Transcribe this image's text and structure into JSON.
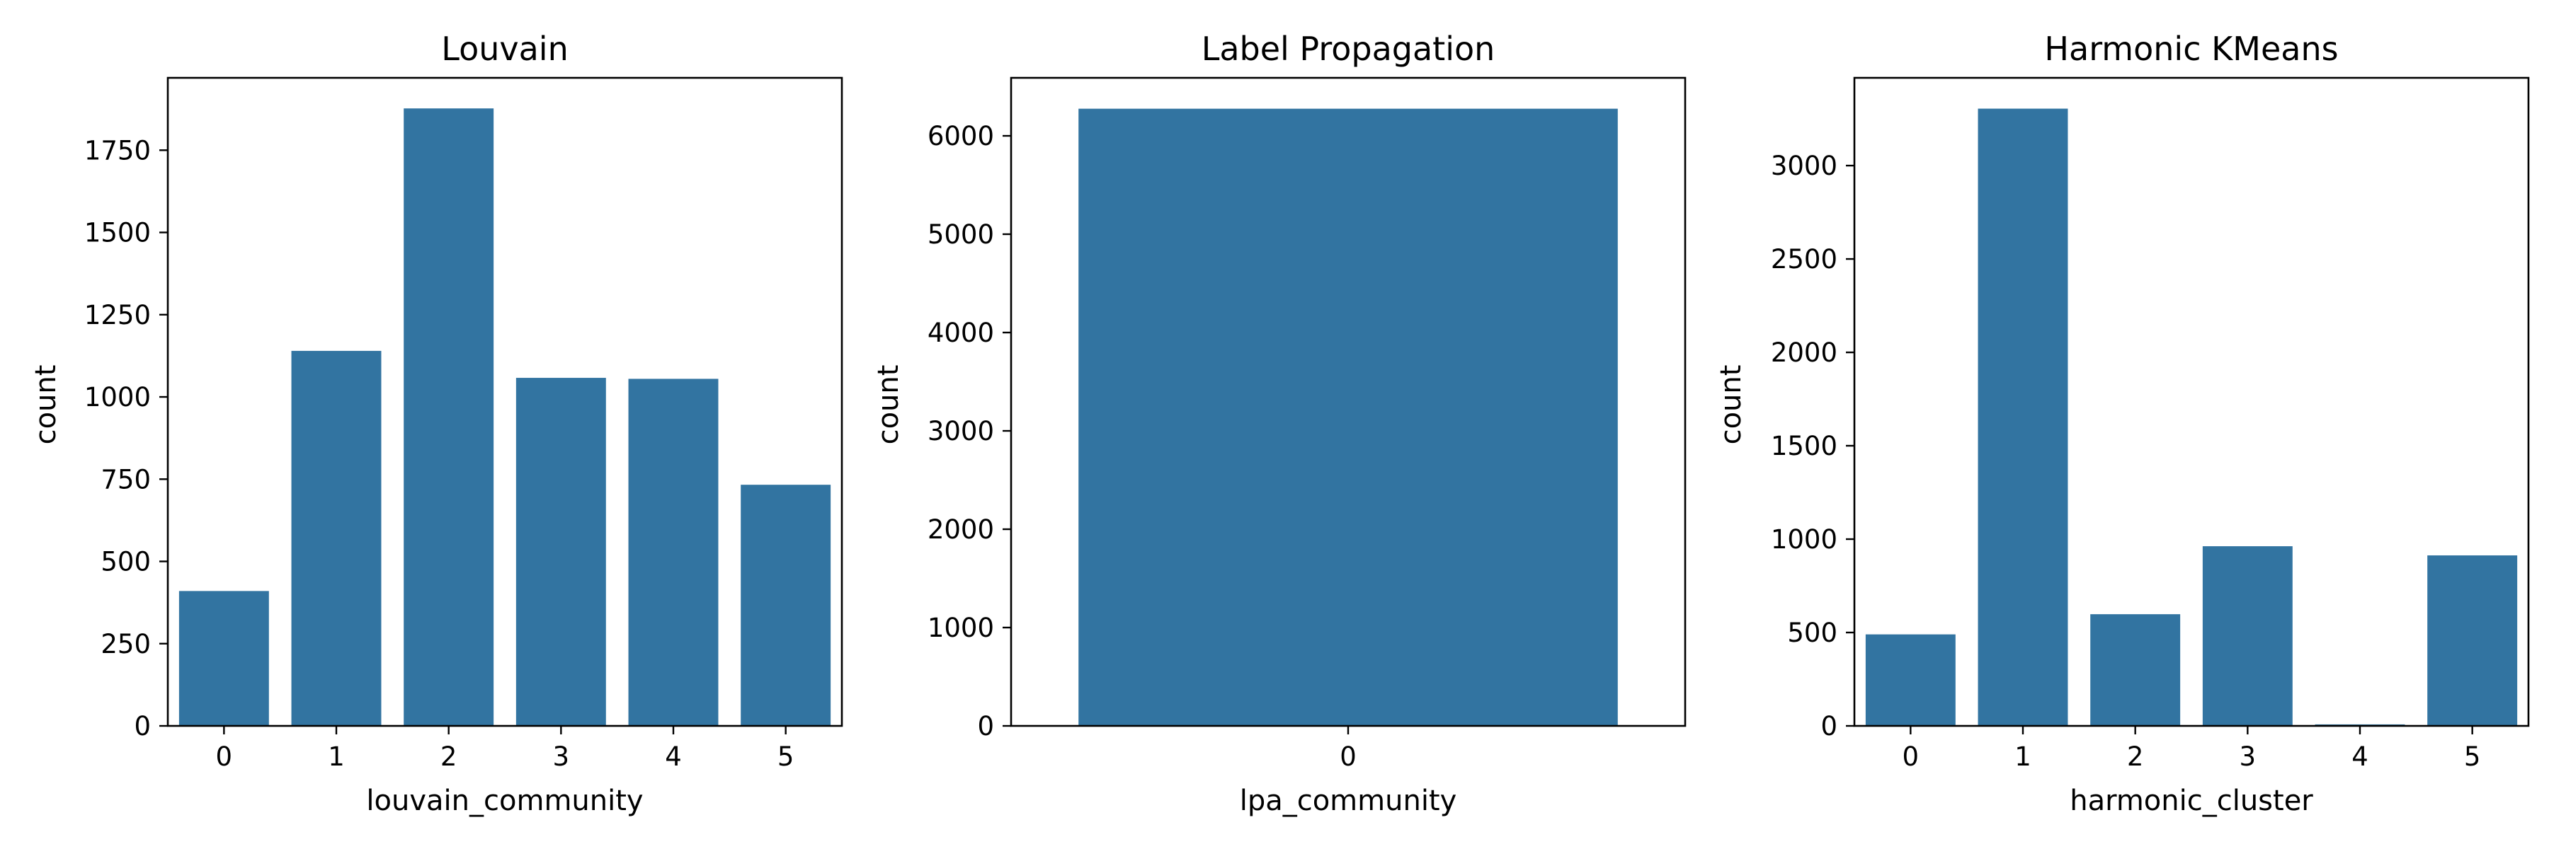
{
  "colors": {
    "bar": "#3274a1"
  },
  "chart_data": [
    {
      "type": "bar",
      "title": "Louvain",
      "xlabel": "louvain_community",
      "ylabel": "count",
      "categories": [
        "0",
        "1",
        "2",
        "3",
        "4",
        "5"
      ],
      "values": [
        410,
        1140,
        1877,
        1058,
        1055,
        733
      ],
      "ylim": [
        0,
        1970
      ],
      "yticks": [
        0,
        250,
        500,
        750,
        1000,
        1250,
        1500,
        1750
      ],
      "grid": false,
      "legend": null
    },
    {
      "type": "bar",
      "title": "Label Propagation",
      "xlabel": "lpa_community",
      "ylabel": "count",
      "categories": [
        "0"
      ],
      "values": [
        6276
      ],
      "ylim": [
        0,
        6590
      ],
      "yticks": [
        0,
        1000,
        2000,
        3000,
        4000,
        5000,
        6000
      ],
      "grid": false,
      "legend": null
    },
    {
      "type": "bar",
      "title": "Harmonic KMeans",
      "xlabel": "harmonic_cluster",
      "ylabel": "count",
      "categories": [
        "0",
        "1",
        "2",
        "3",
        "4",
        "5"
      ],
      "values": [
        490,
        3305,
        598,
        962,
        8,
        913
      ],
      "ylim": [
        0,
        3470
      ],
      "yticks": [
        0,
        500,
        1000,
        1500,
        2000,
        2500,
        3000
      ],
      "grid": false,
      "legend": null
    }
  ]
}
